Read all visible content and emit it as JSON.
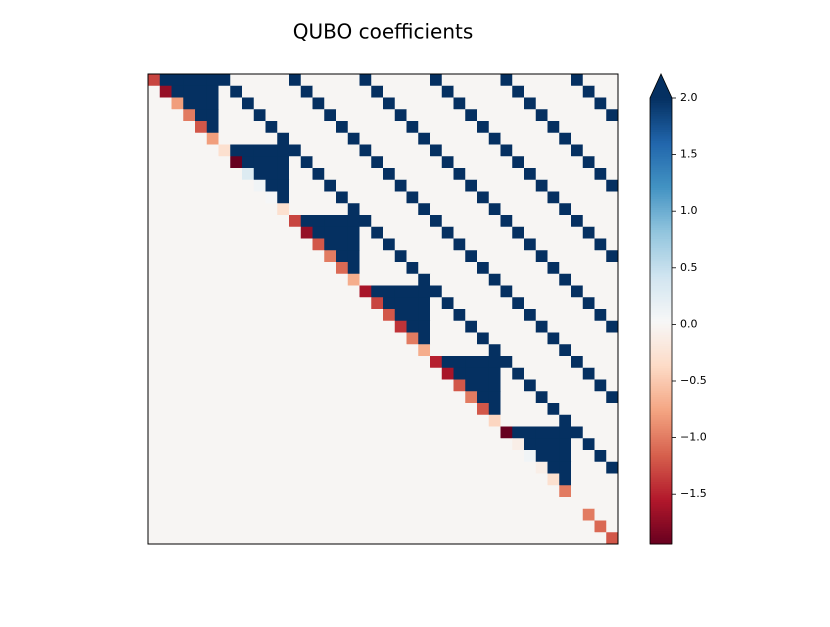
{
  "chart_data": {
    "type": "heatmap",
    "title": "QUBO coefficients",
    "colormap": "RdBu",
    "clim": [
      -1.94,
      2
    ],
    "colorbar_extend": "max",
    "cticks": [
      {
        "value": -1.5,
        "label": "−1.5"
      },
      {
        "value": -1.0,
        "label": "−1.0"
      },
      {
        "value": -0.5,
        "label": "−0.5"
      },
      {
        "value": 0,
        "label": "0.0"
      },
      {
        "value": 0.5,
        "label": "0.5"
      },
      {
        "value": 1.0,
        "label": "1.0"
      },
      {
        "value": 1.5,
        "label": "1.5"
      },
      {
        "value": 2.0,
        "label": "2.0"
      }
    ],
    "z": [
      [
        -1.3,
        2,
        2,
        2,
        2,
        2,
        2,
        0,
        0,
        0,
        0,
        0,
        2,
        0,
        0,
        0,
        0,
        0,
        2,
        0,
        0,
        0,
        0,
        0,
        2,
        0,
        0,
        0,
        0,
        0,
        2,
        0,
        0,
        0,
        0,
        0,
        2,
        0,
        0,
        0
      ],
      [
        0,
        -1.7,
        2,
        2,
        2,
        2,
        0,
        2,
        0,
        0,
        0,
        0,
        0,
        2,
        0,
        0,
        0,
        0,
        0,
        2,
        0,
        0,
        0,
        0,
        0,
        2,
        0,
        0,
        0,
        0,
        0,
        2,
        0,
        0,
        0,
        0,
        0,
        2,
        0,
        0
      ],
      [
        0,
        0,
        -0.8,
        2,
        2,
        2,
        0,
        0,
        2,
        0,
        0,
        0,
        0,
        0,
        2,
        0,
        0,
        0,
        0,
        0,
        2,
        0,
        0,
        0,
        0,
        0,
        2,
        0,
        0,
        0,
        0,
        0,
        2,
        0,
        0,
        0,
        0,
        0,
        2,
        0
      ],
      [
        0,
        0,
        0,
        -1,
        2,
        2,
        0,
        0,
        0,
        2,
        0,
        0,
        0,
        0,
        0,
        2,
        0,
        0,
        0,
        0,
        0,
        2,
        0,
        0,
        0,
        0,
        0,
        2,
        0,
        0,
        0,
        0,
        0,
        2,
        0,
        0,
        0,
        0,
        0,
        2
      ],
      [
        0,
        0,
        0,
        0,
        -1.2,
        2,
        0,
        0,
        0,
        0,
        2,
        0,
        0,
        0,
        0,
        0,
        2,
        0,
        0,
        0,
        0,
        0,
        2,
        0,
        0,
        0,
        0,
        0,
        2,
        0,
        0,
        0,
        0,
        0,
        2,
        0,
        0,
        0,
        0,
        0
      ],
      [
        0,
        0,
        0,
        0,
        0,
        -0.8,
        0,
        0,
        0,
        0,
        0,
        2,
        0,
        0,
        0,
        0,
        0,
        2,
        0,
        0,
        0,
        0,
        0,
        2,
        0,
        0,
        0,
        0,
        0,
        2,
        0,
        0,
        0,
        0,
        0,
        2,
        0,
        0,
        0,
        0
      ],
      [
        0,
        0,
        0,
        0,
        0,
        0,
        -0.3,
        2,
        2,
        2,
        2,
        2,
        2,
        0,
        0,
        0,
        0,
        0,
        2,
        0,
        0,
        0,
        0,
        0,
        2,
        0,
        0,
        0,
        0,
        0,
        2,
        0,
        0,
        0,
        0,
        0,
        2,
        0,
        0,
        0
      ],
      [
        0,
        0,
        0,
        0,
        0,
        0,
        0,
        -1.94,
        2,
        2,
        2,
        2,
        0,
        2,
        0,
        0,
        0,
        0,
        0,
        2,
        0,
        0,
        0,
        0,
        0,
        2,
        0,
        0,
        0,
        0,
        0,
        2,
        0,
        0,
        0,
        0,
        0,
        2,
        0,
        0
      ],
      [
        0,
        0,
        0,
        0,
        0,
        0,
        0,
        0,
        0.3,
        2,
        2,
        2,
        0,
        0,
        2,
        0,
        0,
        0,
        0,
        0,
        2,
        0,
        0,
        0,
        0,
        0,
        2,
        0,
        0,
        0,
        0,
        0,
        2,
        0,
        0,
        0,
        0,
        0,
        2,
        0
      ],
      [
        0,
        0,
        0,
        0,
        0,
        0,
        0,
        0,
        0,
        0.1,
        2,
        2,
        0,
        0,
        0,
        2,
        0,
        0,
        0,
        0,
        0,
        2,
        0,
        0,
        0,
        0,
        0,
        2,
        0,
        0,
        0,
        0,
        0,
        2,
        0,
        0,
        0,
        0,
        0,
        2
      ],
      [
        0,
        0,
        0,
        0,
        0,
        0,
        0,
        0,
        0,
        0,
        0.05,
        2,
        0,
        0,
        0,
        0,
        2,
        0,
        0,
        0,
        0,
        0,
        2,
        0,
        0,
        0,
        0,
        0,
        2,
        0,
        0,
        0,
        0,
        0,
        2,
        0,
        0,
        0,
        0,
        0
      ],
      [
        0,
        0,
        0,
        0,
        0,
        0,
        0,
        0,
        0,
        0,
        0,
        -0.3,
        0,
        0,
        0,
        0,
        0,
        2,
        0,
        0,
        0,
        0,
        0,
        2,
        0,
        0,
        0,
        0,
        0,
        2,
        0,
        0,
        0,
        0,
        0,
        2,
        0,
        0,
        0,
        0
      ],
      [
        0,
        0,
        0,
        0,
        0,
        0,
        0,
        0,
        0,
        0,
        0,
        0,
        -1.3,
        2,
        2,
        2,
        2,
        2,
        2,
        0,
        0,
        0,
        0,
        0,
        2,
        0,
        0,
        0,
        0,
        0,
        2,
        0,
        0,
        0,
        0,
        0,
        2,
        0,
        0,
        0
      ],
      [
        0,
        0,
        0,
        0,
        0,
        0,
        0,
        0,
        0,
        0,
        0,
        0,
        0,
        -1.7,
        2,
        2,
        2,
        2,
        0,
        2,
        0,
        0,
        0,
        0,
        0,
        2,
        0,
        0,
        0,
        0,
        0,
        2,
        0,
        0,
        0,
        0,
        0,
        2,
        0,
        0
      ],
      [
        0,
        0,
        0,
        0,
        0,
        0,
        0,
        0,
        0,
        0,
        0,
        0,
        0,
        0,
        -1.2,
        2,
        2,
        2,
        0,
        0,
        2,
        0,
        0,
        0,
        0,
        0,
        2,
        0,
        0,
        0,
        0,
        0,
        2,
        0,
        0,
        0,
        0,
        0,
        2,
        0
      ],
      [
        0,
        0,
        0,
        0,
        0,
        0,
        0,
        0,
        0,
        0,
        0,
        0,
        0,
        0,
        0,
        -1,
        2,
        2,
        0,
        0,
        0,
        2,
        0,
        0,
        0,
        0,
        0,
        2,
        0,
        0,
        0,
        0,
        0,
        2,
        0,
        0,
        0,
        0,
        0,
        2
      ],
      [
        0,
        0,
        0,
        0,
        0,
        0,
        0,
        0,
        0,
        0,
        0,
        0,
        0,
        0,
        0,
        0,
        -1.1,
        2,
        0,
        0,
        0,
        0,
        2,
        0,
        0,
        0,
        0,
        0,
        2,
        0,
        0,
        0,
        0,
        0,
        2,
        0,
        0,
        0,
        0,
        0
      ],
      [
        0,
        0,
        0,
        0,
        0,
        0,
        0,
        0,
        0,
        0,
        0,
        0,
        0,
        0,
        0,
        0,
        0,
        -0.7,
        0,
        0,
        0,
        0,
        0,
        2,
        0,
        0,
        0,
        0,
        0,
        2,
        0,
        0,
        0,
        0,
        0,
        2,
        0,
        0,
        0,
        0
      ],
      [
        0,
        0,
        0,
        0,
        0,
        0,
        0,
        0,
        0,
        0,
        0,
        0,
        0,
        0,
        0,
        0,
        0,
        0,
        -1.6,
        2,
        2,
        2,
        2,
        2,
        2,
        0,
        0,
        0,
        0,
        0,
        2,
        0,
        0,
        0,
        0,
        0,
        2,
        0,
        0,
        0
      ],
      [
        0,
        0,
        0,
        0,
        0,
        0,
        0,
        0,
        0,
        0,
        0,
        0,
        0,
        0,
        0,
        0,
        0,
        0,
        0,
        -1.3,
        2,
        2,
        2,
        2,
        0,
        2,
        0,
        0,
        0,
        0,
        0,
        2,
        0,
        0,
        0,
        0,
        0,
        2,
        0,
        0
      ],
      [
        0,
        0,
        0,
        0,
        0,
        0,
        0,
        0,
        0,
        0,
        0,
        0,
        0,
        0,
        0,
        0,
        0,
        0,
        0,
        0,
        -1.2,
        2,
        2,
        2,
        0,
        0,
        2,
        0,
        0,
        0,
        0,
        0,
        2,
        0,
        0,
        0,
        0,
        0,
        2,
        0
      ],
      [
        0,
        0,
        0,
        0,
        0,
        0,
        0,
        0,
        0,
        0,
        0,
        0,
        0,
        0,
        0,
        0,
        0,
        0,
        0,
        0,
        0,
        -1.4,
        2,
        2,
        0,
        0,
        0,
        2,
        0,
        0,
        0,
        0,
        0,
        2,
        0,
        0,
        0,
        0,
        0,
        2
      ],
      [
        0,
        0,
        0,
        0,
        0,
        0,
        0,
        0,
        0,
        0,
        0,
        0,
        0,
        0,
        0,
        0,
        0,
        0,
        0,
        0,
        0,
        0,
        -1,
        2,
        0,
        0,
        0,
        0,
        2,
        0,
        0,
        0,
        0,
        0,
        2,
        0,
        0,
        0,
        0,
        0
      ],
      [
        0,
        0,
        0,
        0,
        0,
        0,
        0,
        0,
        0,
        0,
        0,
        0,
        0,
        0,
        0,
        0,
        0,
        0,
        0,
        0,
        0,
        0,
        0,
        -0.7,
        0,
        0,
        0,
        0,
        0,
        2,
        0,
        0,
        0,
        0,
        0,
        2,
        0,
        0,
        0,
        0
      ],
      [
        0,
        0,
        0,
        0,
        0,
        0,
        0,
        0,
        0,
        0,
        0,
        0,
        0,
        0,
        0,
        0,
        0,
        0,
        0,
        0,
        0,
        0,
        0,
        0,
        -1.5,
        2,
        2,
        2,
        2,
        2,
        2,
        0,
        0,
        0,
        0,
        0,
        2,
        0,
        0,
        0
      ],
      [
        0,
        0,
        0,
        0,
        0,
        0,
        0,
        0,
        0,
        0,
        0,
        0,
        0,
        0,
        0,
        0,
        0,
        0,
        0,
        0,
        0,
        0,
        0,
        0,
        0,
        -1.6,
        2,
        2,
        2,
        2,
        0,
        2,
        0,
        0,
        0,
        0,
        0,
        2,
        0,
        0
      ],
      [
        0,
        0,
        0,
        0,
        0,
        0,
        0,
        0,
        0,
        0,
        0,
        0,
        0,
        0,
        0,
        0,
        0,
        0,
        0,
        0,
        0,
        0,
        0,
        0,
        0,
        0,
        -1.2,
        2,
        2,
        2,
        0,
        0,
        2,
        0,
        0,
        0,
        0,
        0,
        2,
        0
      ],
      [
        0,
        0,
        0,
        0,
        0,
        0,
        0,
        0,
        0,
        0,
        0,
        0,
        0,
        0,
        0,
        0,
        0,
        0,
        0,
        0,
        0,
        0,
        0,
        0,
        0,
        0,
        0,
        -1,
        2,
        2,
        0,
        0,
        0,
        2,
        0,
        0,
        0,
        0,
        0,
        2
      ],
      [
        0,
        0,
        0,
        0,
        0,
        0,
        0,
        0,
        0,
        0,
        0,
        0,
        0,
        0,
        0,
        0,
        0,
        0,
        0,
        0,
        0,
        0,
        0,
        0,
        0,
        0,
        0,
        0,
        -1.2,
        2,
        0,
        0,
        0,
        0,
        2,
        0,
        0,
        0,
        0,
        0
      ],
      [
        0,
        0,
        0,
        0,
        0,
        0,
        0,
        0,
        0,
        0,
        0,
        0,
        0,
        0,
        0,
        0,
        0,
        0,
        0,
        0,
        0,
        0,
        0,
        0,
        0,
        0,
        0,
        0,
        0,
        -0.4,
        0,
        0,
        0,
        0,
        0,
        2,
        0,
        0,
        0,
        0
      ],
      [
        0,
        0,
        0,
        0,
        0,
        0,
        0,
        0,
        0,
        0,
        0,
        0,
        0,
        0,
        0,
        0,
        0,
        0,
        0,
        0,
        0,
        0,
        0,
        0,
        0,
        0,
        0,
        0,
        0,
        0,
        -1.94,
        2,
        2,
        2,
        2,
        2,
        2,
        0,
        0,
        0
      ],
      [
        0,
        0,
        0,
        0,
        0,
        0,
        0,
        0,
        0,
        0,
        0,
        0,
        0,
        0,
        0,
        0,
        0,
        0,
        0,
        0,
        0,
        0,
        0,
        0,
        0,
        0,
        0,
        0,
        0,
        0,
        0,
        -0.1,
        2,
        2,
        2,
        2,
        0,
        2,
        0,
        0
      ],
      [
        0,
        0,
        0,
        0,
        0,
        0,
        0,
        0,
        0,
        0,
        0,
        0,
        0,
        0,
        0,
        0,
        0,
        0,
        0,
        0,
        0,
        0,
        0,
        0,
        0,
        0,
        0,
        0,
        0,
        0,
        0,
        0,
        0.1,
        2,
        2,
        2,
        0,
        0,
        2,
        0
      ],
      [
        0,
        0,
        0,
        0,
        0,
        0,
        0,
        0,
        0,
        0,
        0,
        0,
        0,
        0,
        0,
        0,
        0,
        0,
        0,
        0,
        0,
        0,
        0,
        0,
        0,
        0,
        0,
        0,
        0,
        0,
        0,
        0,
        0,
        -0.1,
        2,
        2,
        0,
        0,
        0,
        2
      ],
      [
        0,
        0,
        0,
        0,
        0,
        0,
        0,
        0,
        0,
        0,
        0,
        0,
        0,
        0,
        0,
        0,
        0,
        0,
        0,
        0,
        0,
        0,
        0,
        0,
        0,
        0,
        0,
        0,
        0,
        0,
        0,
        0,
        0,
        0,
        -0.3,
        2,
        0,
        0,
        0,
        0
      ],
      [
        0,
        0,
        0,
        0,
        0,
        0,
        0,
        0,
        0,
        0,
        0,
        0,
        0,
        0,
        0,
        0,
        0,
        0,
        0,
        0,
        0,
        0,
        0,
        0,
        0,
        0,
        0,
        0,
        0,
        0,
        0,
        0,
        0,
        0,
        0,
        -1,
        0,
        0,
        0,
        0
      ],
      [
        0,
        0,
        0,
        0,
        0,
        0,
        0,
        0,
        0,
        0,
        0,
        0,
        0,
        0,
        0,
        0,
        0,
        0,
        0,
        0,
        0,
        0,
        0,
        0,
        0,
        0,
        0,
        0,
        0,
        0,
        0,
        0,
        0,
        0,
        0,
        0,
        0,
        0,
        0,
        0
      ],
      [
        0,
        0,
        0,
        0,
        0,
        0,
        0,
        0,
        0,
        0,
        0,
        0,
        0,
        0,
        0,
        0,
        0,
        0,
        0,
        0,
        0,
        0,
        0,
        0,
        0,
        0,
        0,
        0,
        0,
        0,
        0,
        0,
        0,
        0,
        0,
        0,
        0,
        -1,
        0,
        0
      ],
      [
        0,
        0,
        0,
        0,
        0,
        0,
        0,
        0,
        0,
        0,
        0,
        0,
        0,
        0,
        0,
        0,
        0,
        0,
        0,
        0,
        0,
        0,
        0,
        0,
        0,
        0,
        0,
        0,
        0,
        0,
        0,
        0,
        0,
        0,
        0,
        0,
        0,
        0,
        -1.1,
        0
      ],
      [
        0,
        0,
        0,
        0,
        0,
        0,
        0,
        0,
        0,
        0,
        0,
        0,
        0,
        0,
        0,
        0,
        0,
        0,
        0,
        0,
        0,
        0,
        0,
        0,
        0,
        0,
        0,
        0,
        0,
        0,
        0,
        0,
        0,
        0,
        0,
        0,
        0,
        0,
        0,
        -1.2
      ]
    ]
  }
}
